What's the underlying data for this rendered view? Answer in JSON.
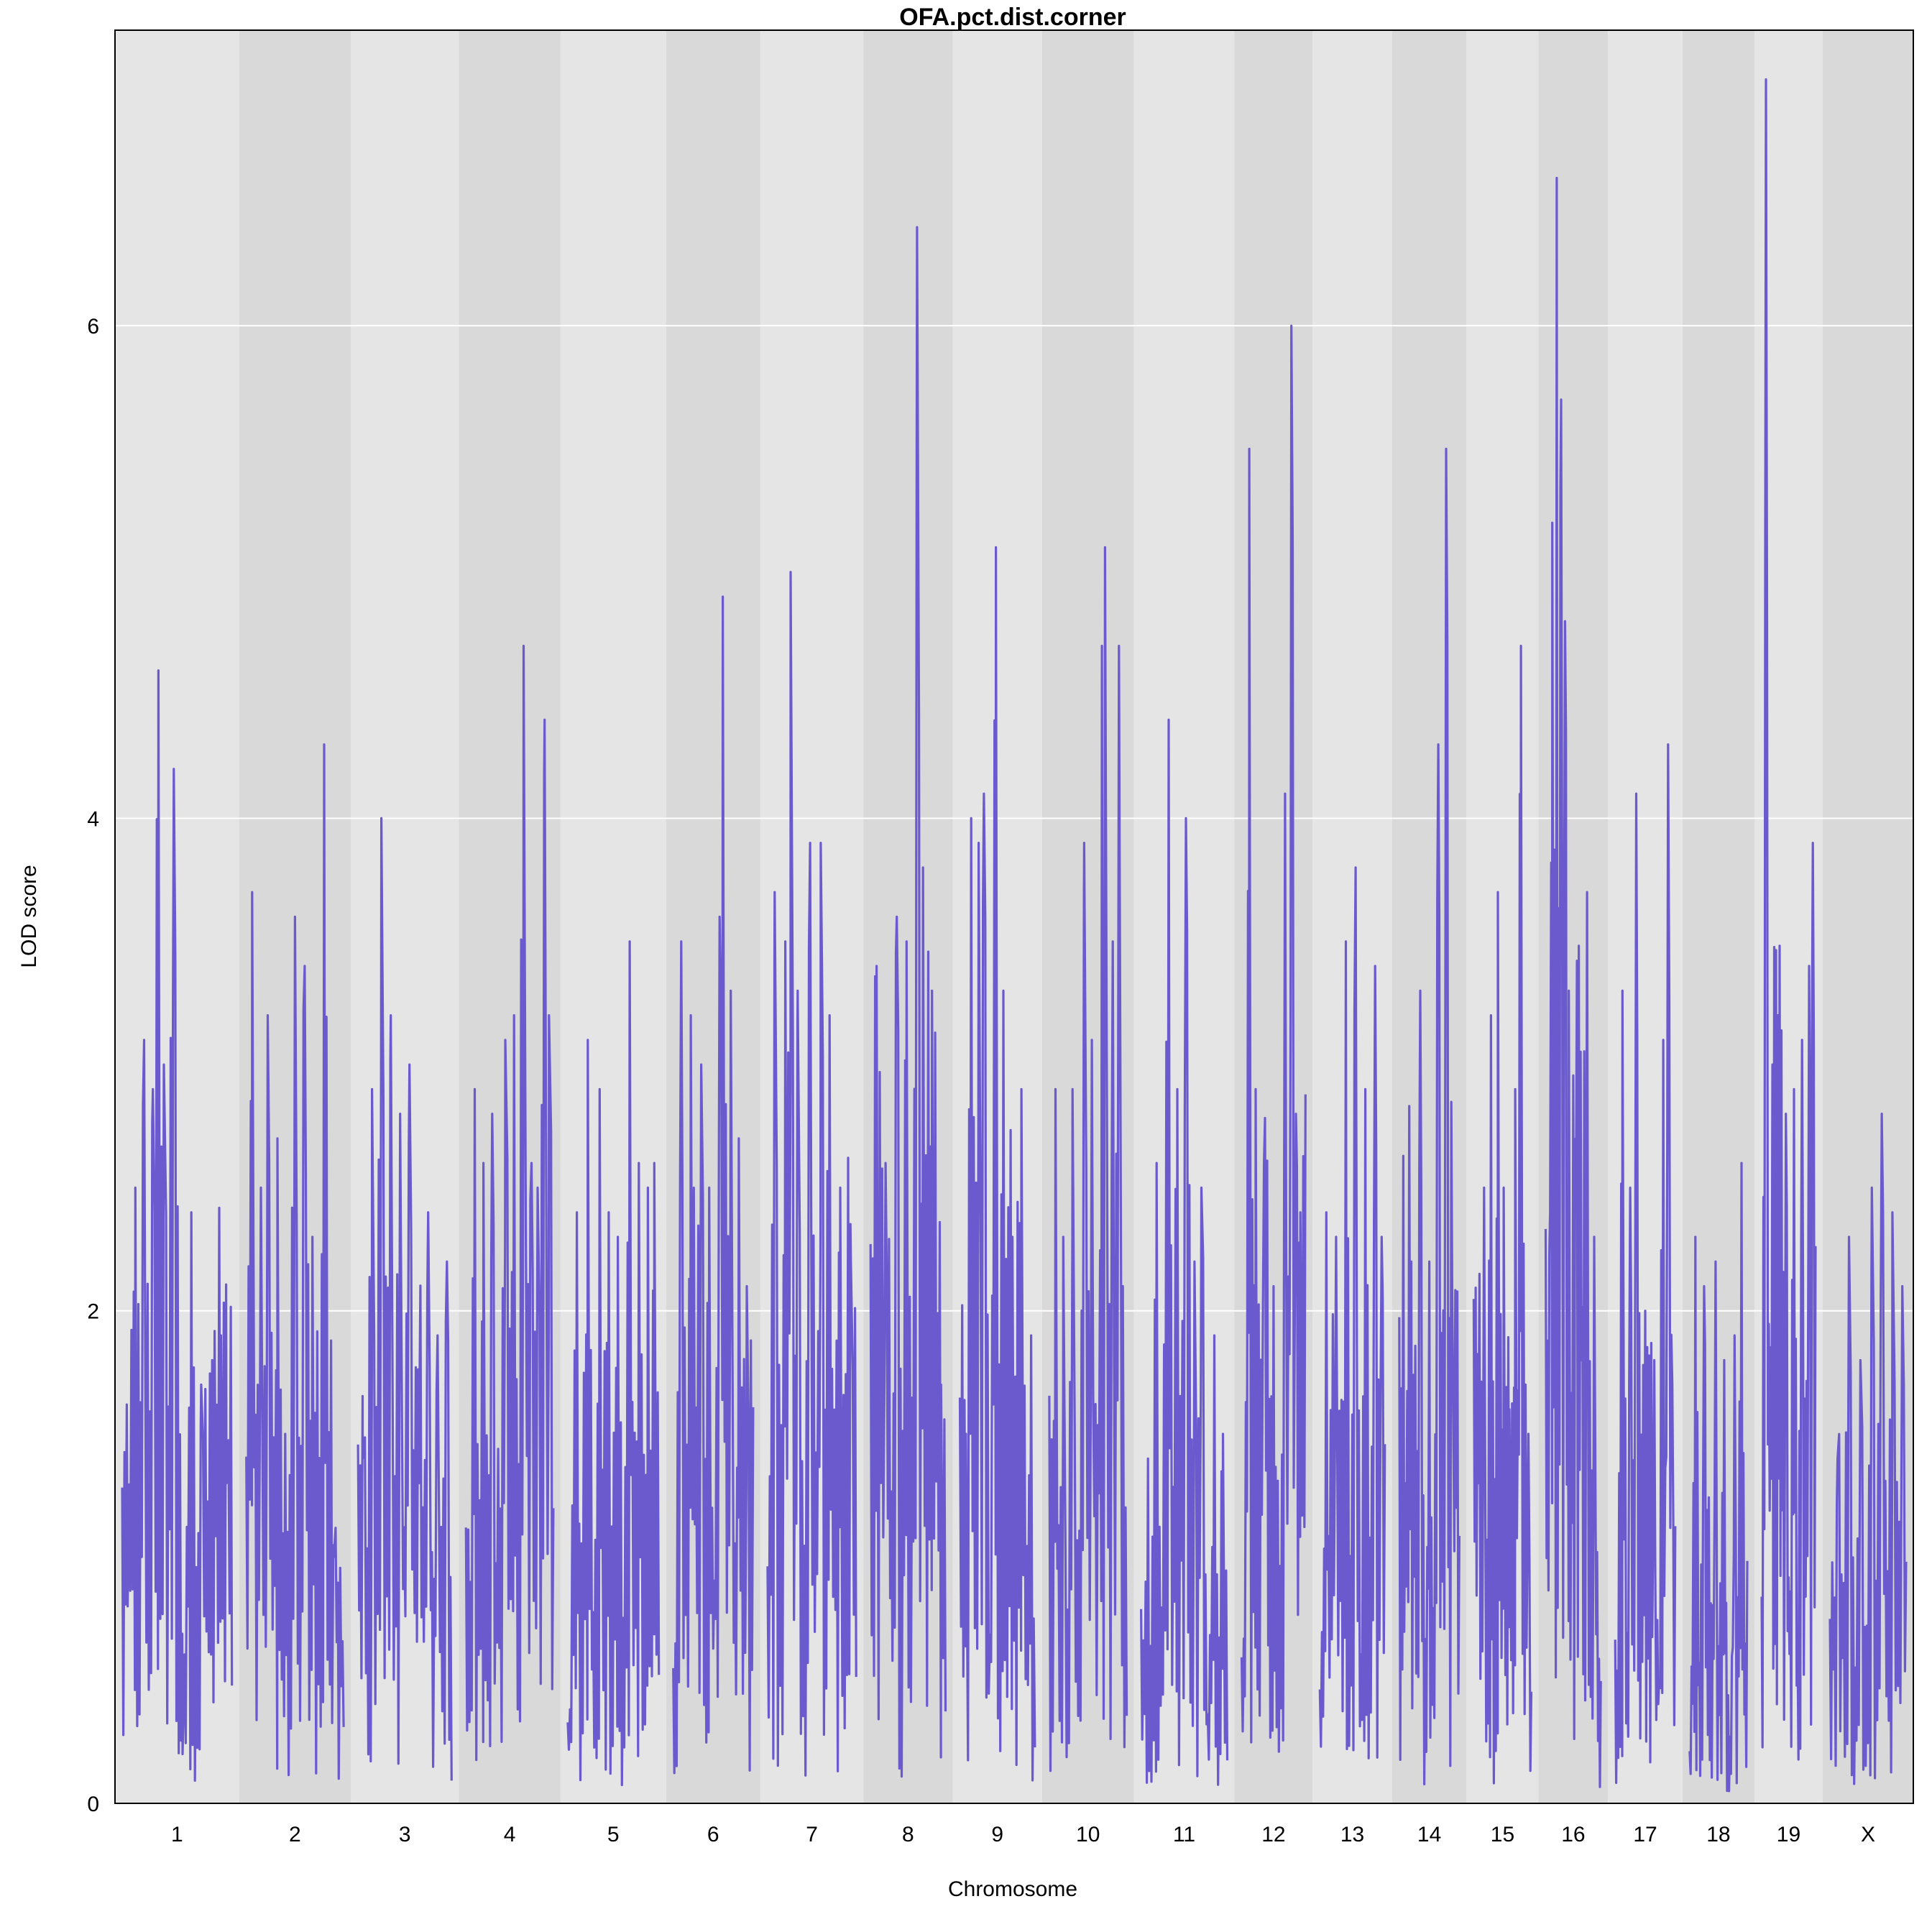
{
  "chart_data": {
    "type": "line",
    "title": "OFA.pct.dist.corner",
    "xlabel": "Chromosome",
    "ylabel": "LOD score",
    "ylim": [
      0,
      7.2
    ],
    "yticks": [
      0,
      2,
      4,
      6
    ],
    "grid": true,
    "line_color": "#6a5acd",
    "band_colors": [
      "#e5e5e5",
      "#d9d9d9"
    ],
    "chromosomes": [
      {
        "label": "1",
        "peaks": [
          [
            0.05,
            0.8
          ],
          [
            0.12,
            2.5
          ],
          [
            0.2,
            3.1
          ],
          [
            0.28,
            2.9
          ],
          [
            0.33,
            4.6
          ],
          [
            0.38,
            3.0
          ],
          [
            0.47,
            4.2
          ],
          [
            0.55,
            0.2
          ],
          [
            0.63,
            2.4
          ],
          [
            0.72,
            1.7
          ],
          [
            0.82,
            1.8
          ],
          [
            0.9,
            1.9
          ],
          [
            0.95,
            1.3
          ]
        ]
      },
      {
        "label": "2",
        "peaks": [
          [
            0.06,
            3.7
          ],
          [
            0.15,
            2.5
          ],
          [
            0.22,
            3.2
          ],
          [
            0.32,
            2.7
          ],
          [
            0.4,
            1.5
          ],
          [
            0.5,
            3.6
          ],
          [
            0.6,
            3.4
          ],
          [
            0.68,
            2.3
          ],
          [
            0.8,
            4.3
          ],
          [
            0.9,
            1.0
          ],
          [
            0.95,
            0.1
          ]
        ]
      },
      {
        "label": "3",
        "peaks": [
          [
            0.05,
            1.4
          ],
          [
            0.15,
            2.9
          ],
          [
            0.25,
            4.0
          ],
          [
            0.35,
            3.2
          ],
          [
            0.45,
            2.8
          ],
          [
            0.55,
            3.0
          ],
          [
            0.65,
            1.3
          ],
          [
            0.75,
            2.4
          ],
          [
            0.85,
            1.9
          ],
          [
            0.95,
            2.2
          ]
        ]
      },
      {
        "label": "4",
        "peaks": [
          [
            0.1,
            2.9
          ],
          [
            0.2,
            2.6
          ],
          [
            0.3,
            2.8
          ],
          [
            0.45,
            3.1
          ],
          [
            0.55,
            3.2
          ],
          [
            0.66,
            4.7
          ],
          [
            0.75,
            2.6
          ],
          [
            0.82,
            2.5
          ],
          [
            0.9,
            4.4
          ],
          [
            0.95,
            3.2
          ]
        ]
      },
      {
        "label": "5",
        "peaks": [
          [
            0.1,
            2.4
          ],
          [
            0.22,
            3.1
          ],
          [
            0.35,
            2.9
          ],
          [
            0.45,
            2.4
          ],
          [
            0.55,
            2.3
          ],
          [
            0.68,
            3.5
          ],
          [
            0.78,
            2.6
          ],
          [
            0.88,
            2.5
          ],
          [
            0.95,
            2.6
          ]
        ]
      },
      {
        "label": "6",
        "peaks": [
          [
            0.1,
            3.5
          ],
          [
            0.22,
            3.2
          ],
          [
            0.35,
            3.0
          ],
          [
            0.45,
            2.5
          ],
          [
            0.58,
            3.6
          ],
          [
            0.62,
            4.9
          ],
          [
            0.72,
            3.3
          ],
          [
            0.82,
            2.7
          ],
          [
            0.92,
            2.1
          ]
        ]
      },
      {
        "label": "7",
        "peaks": [
          [
            0.08,
            3.7
          ],
          [
            0.2,
            3.5
          ],
          [
            0.26,
            5.0
          ],
          [
            0.34,
            3.3
          ],
          [
            0.48,
            3.9
          ],
          [
            0.6,
            3.9
          ],
          [
            0.7,
            3.2
          ],
          [
            0.82,
            2.5
          ],
          [
            0.94,
            2.2
          ]
        ]
      },
      {
        "label": "8",
        "peaks": [
          [
            0.08,
            3.4
          ],
          [
            0.2,
            2.6
          ],
          [
            0.35,
            3.6
          ],
          [
            0.48,
            3.5
          ],
          [
            0.62,
            6.4
          ],
          [
            0.7,
            3.8
          ],
          [
            0.82,
            3.3
          ],
          [
            0.94,
            1.7
          ]
        ]
      },
      {
        "label": "9",
        "peaks": [
          [
            0.08,
            1.5
          ],
          [
            0.15,
            4.0
          ],
          [
            0.25,
            3.9
          ],
          [
            0.32,
            4.1
          ],
          [
            0.48,
            5.1
          ],
          [
            0.58,
            3.3
          ],
          [
            0.7,
            2.3
          ],
          [
            0.82,
            2.9
          ],
          [
            0.95,
            1.9
          ]
        ]
      },
      {
        "label": "10",
        "peaks": [
          [
            0.08,
            2.9
          ],
          [
            0.18,
            2.3
          ],
          [
            0.3,
            2.9
          ],
          [
            0.45,
            3.9
          ],
          [
            0.55,
            3.1
          ],
          [
            0.68,
            4.7
          ],
          [
            0.72,
            5.1
          ],
          [
            0.82,
            3.5
          ],
          [
            0.9,
            4.7
          ],
          [
            0.95,
            2.1
          ]
        ]
      },
      {
        "label": "11",
        "peaks": [
          [
            0.08,
            1.4
          ],
          [
            0.18,
            2.6
          ],
          [
            0.32,
            4.4
          ],
          [
            0.42,
            2.9
          ],
          [
            0.52,
            4.0
          ],
          [
            0.62,
            2.2
          ],
          [
            0.7,
            2.5
          ],
          [
            0.85,
            1.9
          ],
          [
            0.95,
            1.5
          ]
        ]
      },
      {
        "label": "12",
        "peaks": [
          [
            0.12,
            5.5
          ],
          [
            0.22,
            2.9
          ],
          [
            0.35,
            2.6
          ],
          [
            0.5,
            2.1
          ],
          [
            0.68,
            4.1
          ],
          [
            0.78,
            6.0
          ],
          [
            0.85,
            2.8
          ],
          [
            0.92,
            2.4
          ]
        ]
      },
      {
        "label": "13",
        "peaks": [
          [
            0.1,
            2.4
          ],
          [
            0.25,
            2.3
          ],
          [
            0.4,
            3.5
          ],
          [
            0.55,
            3.8
          ],
          [
            0.7,
            2.9
          ],
          [
            0.85,
            3.4
          ],
          [
            0.95,
            2.3
          ]
        ]
      },
      {
        "label": "14",
        "peaks": [
          [
            0.1,
            1.3
          ],
          [
            0.2,
            2.2
          ],
          [
            0.35,
            3.3
          ],
          [
            0.5,
            2.2
          ],
          [
            0.65,
            4.3
          ],
          [
            0.78,
            5.5
          ],
          [
            0.88,
            2.1
          ],
          [
            0.95,
            1.2
          ]
        ]
      },
      {
        "label": "15",
        "peaks": [
          [
            0.08,
            1.3
          ],
          [
            0.18,
            2.5
          ],
          [
            0.3,
            3.2
          ],
          [
            0.42,
            3.7
          ],
          [
            0.52,
            2.5
          ],
          [
            0.62,
            1.6
          ],
          [
            0.72,
            2.9
          ],
          [
            0.82,
            4.7
          ],
          [
            0.9,
            1.7
          ],
          [
            0.95,
            1.5
          ]
        ]
      },
      {
        "label": "16",
        "peaks": [
          [
            0.08,
            2.4
          ],
          [
            0.12,
            5.2
          ],
          [
            0.2,
            6.6
          ],
          [
            0.28,
            5.7
          ],
          [
            0.35,
            4.8
          ],
          [
            0.42,
            3.3
          ],
          [
            0.55,
            2.5
          ],
          [
            0.65,
            1.8
          ],
          [
            0.75,
            3.7
          ],
          [
            0.88,
            2.3
          ]
        ]
      },
      {
        "label": "17",
        "peaks": [
          [
            0.12,
            3.3
          ],
          [
            0.25,
            2.5
          ],
          [
            0.35,
            4.1
          ],
          [
            0.5,
            2.0
          ],
          [
            0.65,
            1.8
          ],
          [
            0.8,
            3.1
          ],
          [
            0.88,
            4.3
          ],
          [
            0.95,
            1.7
          ]
        ]
      },
      {
        "label": "18",
        "peaks": [
          [
            0.1,
            2.3
          ],
          [
            0.25,
            2.1
          ],
          [
            0.45,
            2.2
          ],
          [
            0.6,
            1.8
          ],
          [
            0.78,
            1.9
          ],
          [
            0.9,
            2.6
          ]
        ]
      },
      {
        "label": "19",
        "peaks": [
          [
            0.08,
            7.0
          ],
          [
            0.2,
            3.0
          ],
          [
            0.3,
            3.2
          ],
          [
            0.45,
            2.8
          ],
          [
            0.6,
            2.9
          ],
          [
            0.75,
            3.1
          ],
          [
            0.88,
            3.4
          ],
          [
            0.95,
            3.9
          ]
        ]
      },
      {
        "label": "X",
        "peaks": [
          [
            0.1,
            1.4
          ],
          [
            0.25,
            2.3
          ],
          [
            0.4,
            1.8
          ],
          [
            0.55,
            2.5
          ],
          [
            0.68,
            2.8
          ],
          [
            0.82,
            2.4
          ],
          [
            0.95,
            2.1
          ]
        ]
      }
    ]
  }
}
